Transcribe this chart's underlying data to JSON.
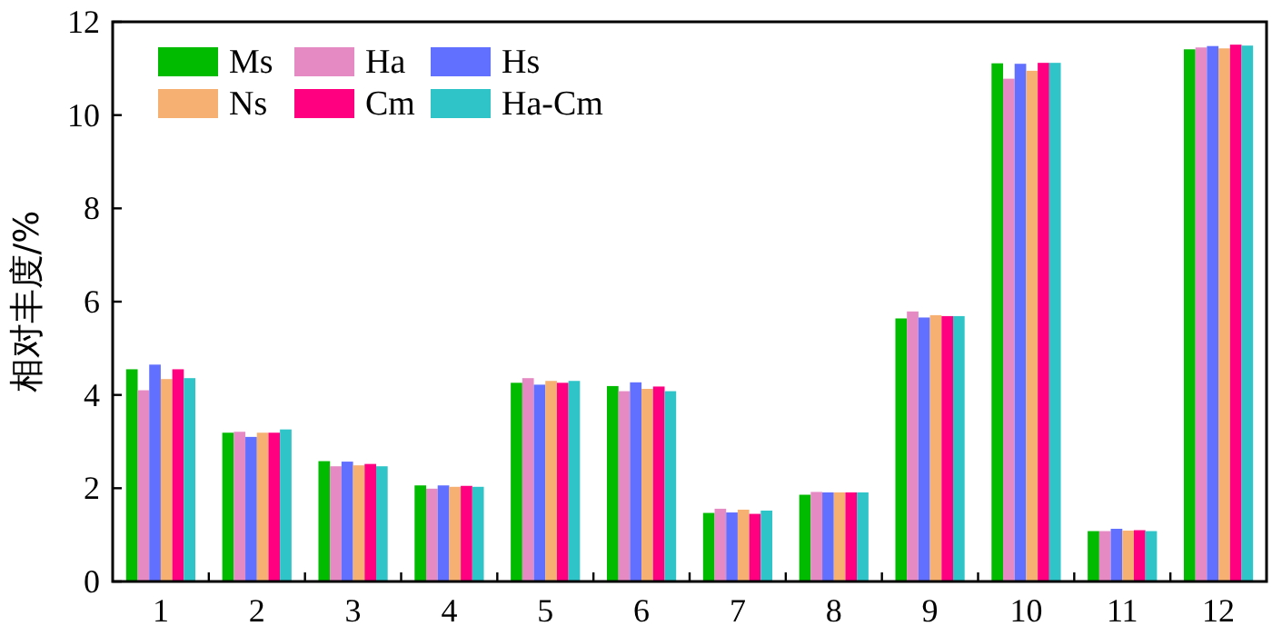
{
  "chart_data": {
    "type": "bar",
    "ylabel": "相对丰度/%",
    "categories": [
      "1",
      "2",
      "3",
      "4",
      "5",
      "6",
      "7",
      "8",
      "9",
      "10",
      "11",
      "12"
    ],
    "series": [
      {
        "name": "Ms",
        "color": "#00bb00",
        "values": [
          4.55,
          3.19,
          2.58,
          2.06,
          4.26,
          4.19,
          1.47,
          1.86,
          5.64,
          11.11,
          1.08,
          11.41
        ]
      },
      {
        "name": "Ha",
        "color": "#e68ac4",
        "values": [
          4.1,
          3.21,
          2.47,
          1.99,
          4.36,
          4.08,
          1.56,
          1.92,
          5.79,
          10.78,
          1.08,
          11.45
        ]
      },
      {
        "name": "Hs",
        "color": "#6270ff",
        "values": [
          4.65,
          3.1,
          2.57,
          2.06,
          4.22,
          4.27,
          1.48,
          1.91,
          5.66,
          11.1,
          1.13,
          11.48
        ]
      },
      {
        "name": "Ns",
        "color": "#f5b072",
        "values": [
          4.34,
          3.19,
          2.49,
          2.03,
          4.3,
          4.13,
          1.54,
          1.91,
          5.71,
          10.95,
          1.09,
          11.43
        ]
      },
      {
        "name": "Cm",
        "color": "#ff0080",
        "values": [
          4.55,
          3.19,
          2.52,
          2.05,
          4.26,
          4.18,
          1.45,
          1.91,
          5.69,
          11.12,
          1.1,
          11.51
        ]
      },
      {
        "name": "Ha-Cm",
        "color": "#2ec4c8",
        "values": [
          4.36,
          3.26,
          2.47,
          2.03,
          4.3,
          4.08,
          1.52,
          1.91,
          5.69,
          11.12,
          1.08,
          11.49
        ]
      }
    ],
    "ylim": [
      0,
      12
    ],
    "yticks": [
      0,
      2,
      4,
      6,
      8,
      10,
      12
    ],
    "legend": "top left",
    "grid": false
  }
}
